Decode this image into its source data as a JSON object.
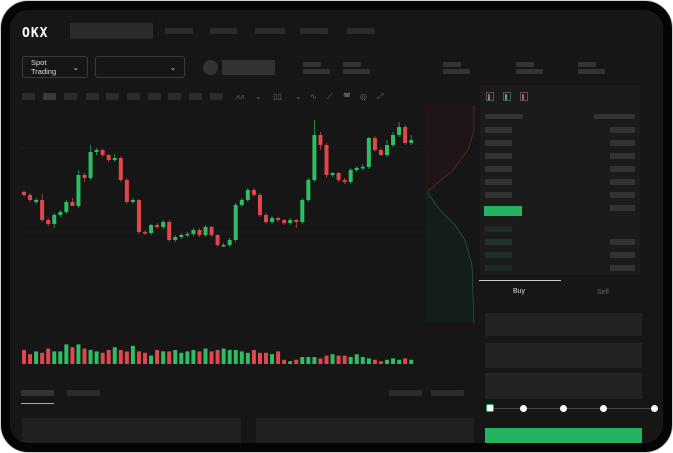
{
  "header": {
    "logo": "OKX"
  },
  "controls": {
    "market_type": "Spot Trading",
    "pair_selector": ""
  },
  "orderbook": {
    "icons": [
      "orderbook-both-icon",
      "orderbook-bids-icon",
      "orderbook-asks-icon"
    ]
  },
  "trade_form": {
    "tabs": [
      {
        "label": "Buy",
        "active": true
      },
      {
        "label": "Sell",
        "active": false
      }
    ],
    "slider_percent": 0,
    "slider_steps": [
      0,
      25,
      50,
      75,
      100
    ]
  },
  "colors": {
    "up": "#2ebd64",
    "down": "#e0474c",
    "accent": "#24b35f",
    "background": "#161616"
  },
  "chart_data": {
    "type": "candlestick",
    "ohlc": [
      [
        98,
        100,
        93,
        95
      ],
      [
        95,
        97,
        88,
        90
      ],
      [
        88,
        92,
        86,
        90
      ],
      [
        90,
        96,
        68,
        70
      ],
      [
        70,
        72,
        64,
        66
      ],
      [
        66,
        77,
        62,
        75
      ],
      [
        75,
        80,
        73,
        78
      ],
      [
        78,
        90,
        76,
        88
      ],
      [
        88,
        92,
        84,
        84
      ],
      [
        84,
        120,
        82,
        115
      ],
      [
        115,
        117,
        108,
        112
      ],
      [
        112,
        145,
        110,
        138
      ],
      [
        138,
        142,
        135,
        140
      ],
      [
        140,
        141,
        133,
        135
      ],
      [
        135,
        136,
        128,
        130
      ],
      [
        130,
        136,
        128,
        132
      ],
      [
        132,
        134,
        108,
        110
      ],
      [
        110,
        112,
        86,
        88
      ],
      [
        88,
        92,
        86,
        90
      ],
      [
        90,
        91,
        56,
        58
      ],
      [
        58,
        60,
        55,
        57
      ],
      [
        57,
        66,
        55,
        65
      ],
      [
        65,
        67,
        61,
        63
      ],
      [
        63,
        70,
        61,
        68
      ],
      [
        68,
        70,
        48,
        50
      ],
      [
        50,
        55,
        48,
        53
      ],
      [
        53,
        57,
        51,
        55
      ],
      [
        55,
        58,
        53,
        56
      ],
      [
        56,
        62,
        54,
        60
      ],
      [
        60,
        62,
        53,
        55
      ],
      [
        55,
        65,
        53,
        63
      ],
      [
        63,
        64,
        53,
        55
      ],
      [
        55,
        56,
        43,
        45
      ],
      [
        45,
        47,
        43,
        45
      ],
      [
        45,
        52,
        43,
        50
      ],
      [
        50,
        87,
        48,
        85
      ],
      [
        85,
        92,
        83,
        90
      ],
      [
        90,
        102,
        88,
        100
      ],
      [
        100,
        102,
        93,
        95
      ],
      [
        95,
        97,
        73,
        75
      ],
      [
        75,
        77,
        66,
        68
      ],
      [
        68,
        74,
        66,
        72
      ],
      [
        72,
        73,
        68,
        70
      ],
      [
        70,
        71,
        65,
        67
      ],
      [
        67,
        72,
        65,
        70
      ],
      [
        70,
        71,
        62,
        68
      ],
      [
        68,
        92,
        66,
        90
      ],
      [
        90,
        112,
        88,
        110
      ],
      [
        110,
        170,
        108,
        155
      ],
      [
        155,
        158,
        140,
        145
      ],
      [
        145,
        147,
        112,
        115
      ],
      [
        115,
        118,
        113,
        117
      ],
      [
        117,
        118,
        108,
        110
      ],
      [
        110,
        112,
        106,
        108
      ],
      [
        108,
        122,
        106,
        120
      ],
      [
        120,
        124,
        118,
        122
      ],
      [
        122,
        126,
        120,
        123
      ],
      [
        123,
        153,
        121,
        152
      ],
      [
        152,
        154,
        138,
        140
      ],
      [
        140,
        142,
        134,
        135
      ],
      [
        135,
        150,
        133,
        145
      ],
      [
        145,
        158,
        143,
        155
      ],
      [
        155,
        168,
        153,
        163
      ],
      [
        163,
        165,
        145,
        147
      ],
      [
        147,
        155,
        145,
        150
      ]
    ],
    "volume": [
      10,
      7,
      9,
      8,
      11,
      9,
      9,
      14,
      12,
      14,
      11,
      10,
      9,
      8,
      10,
      12,
      10,
      9,
      13,
      9,
      8,
      6,
      10,
      9,
      9,
      10,
      8,
      9,
      10,
      9,
      11,
      9,
      10,
      11,
      10,
      10,
      9,
      8,
      10,
      8,
      8,
      7,
      9,
      3,
      2,
      3,
      5,
      5,
      5,
      4,
      6,
      7,
      6,
      6,
      5,
      7,
      5,
      4,
      3,
      2,
      3,
      4,
      3,
      4,
      3
    ]
  }
}
